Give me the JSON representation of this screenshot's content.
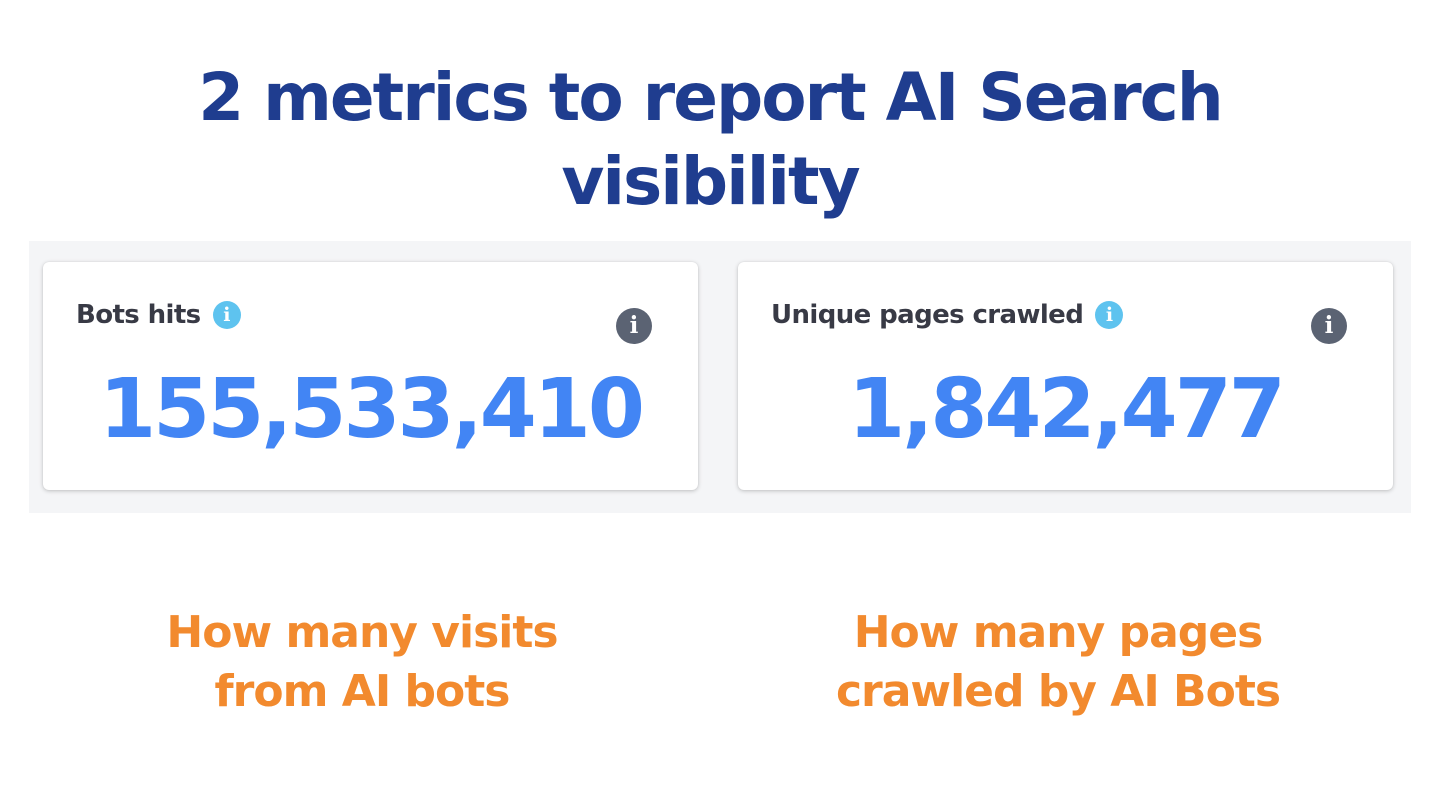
{
  "headline": {
    "line1": "2 metrics to report AI Search",
    "line2": "visibility"
  },
  "cards": [
    {
      "title": "Bots hits",
      "value": "155,533,410",
      "info_icon": "info-icon",
      "help_icon": "info-icon"
    },
    {
      "title": "Unique pages crawled",
      "value": "1,842,477",
      "info_icon": "info-icon",
      "help_icon": "info-icon"
    }
  ],
  "captions": [
    {
      "line1": "How many visits",
      "line2": "from AI bots"
    },
    {
      "line1": "How many pages",
      "line2": "crawled by AI Bots"
    }
  ],
  "colors": {
    "headline": "#1f3d8f",
    "metric_value": "#4285f4",
    "caption": "#f28a2e",
    "info_light": "#5ec3ef",
    "info_dark": "#5b6373",
    "panel_background": "#f4f5f7"
  }
}
